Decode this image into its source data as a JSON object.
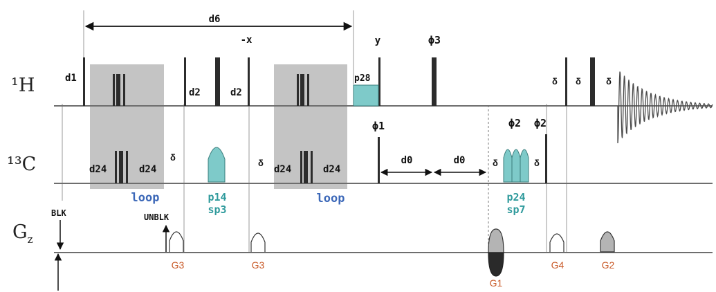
{
  "channels": {
    "h1": {
      "label": "¹H"
    },
    "c13": {
      "label": "¹³C"
    },
    "gz": {
      "label": "G",
      "subscript": "z"
    }
  },
  "delays": {
    "d6": "d6",
    "d1": "d1",
    "d2_a": "d2",
    "d2_b": "d2",
    "d24": "d24",
    "d0": "d0",
    "delta": "δ"
  },
  "phases": {
    "minus_x": "-x",
    "y": "y",
    "phi1": "ϕ1",
    "phi2": "ϕ2",
    "phi3": "ϕ3"
  },
  "pulses": {
    "p28": "p28",
    "p14": "p14",
    "sp3": "sp3",
    "p24": "p24",
    "sp7": "sp7"
  },
  "blocks": {
    "loop": "loop"
  },
  "gradients": {
    "g1": "G1",
    "g2": "G2",
    "g3": "G3",
    "g4": "G4"
  },
  "blanking": {
    "blk": "BLK",
    "unblk": "UNBLK"
  },
  "colors": {
    "baseline": "#6e6e6e",
    "pulse": "#2c2c2c",
    "shaped_pulse": "#7ecac9",
    "loop_block": "#c4c4c4",
    "loop_text": "#3c68b8",
    "shaped_text": "#2f9a9c",
    "gradient_text": "#c95a28",
    "gradient_fill": "#b4b4b4",
    "fid": "#4a4a4a"
  }
}
